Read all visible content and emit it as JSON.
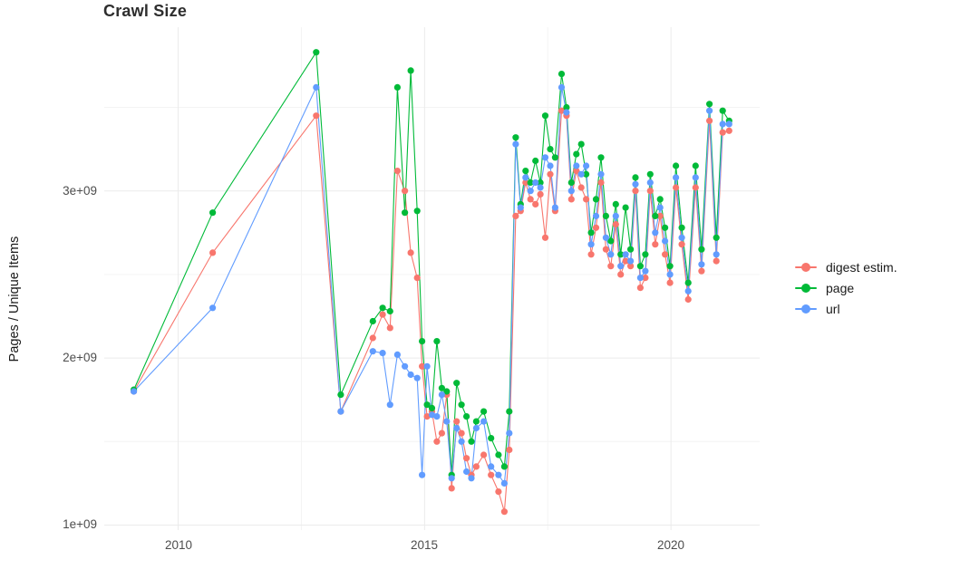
{
  "chart_data": {
    "type": "line",
    "title": "Crawl Size",
    "subtitle": "",
    "xlabel": "",
    "ylabel": "Pages / Unique Items",
    "x_unit": "year (decimal)",
    "y_scale": 1000000000,
    "y_scale_note": "series values are in units of 1e9 (billions); multiply by y_scale for absolute counts",
    "xlim": [
      2008.5,
      2021.8
    ],
    "ylim": [
      0.97,
      3.98
    ],
    "x_ticks_major": [
      2010,
      2015,
      2020
    ],
    "x_tick_labels": [
      "2010",
      "2015",
      "2020"
    ],
    "x_ticks_minor": [
      2012.5,
      2017.5
    ],
    "y_ticks_major": [
      1,
      2,
      3
    ],
    "y_tick_labels": [
      "1e+09",
      "2e+09",
      "3e+09"
    ],
    "y_ticks_minor": [
      1.5,
      2.5,
      3.5
    ],
    "grid": true,
    "legend_position": "right",
    "x": [
      2009.1,
      2010.7,
      2012.8,
      2013.3,
      2013.95,
      2014.15,
      2014.3,
      2014.45,
      2014.6,
      2014.72,
      2014.85,
      2014.95,
      2015.05,
      2015.15,
      2015.25,
      2015.35,
      2015.45,
      2015.55,
      2015.65,
      2015.75,
      2015.85,
      2015.95,
      2016.05,
      2016.2,
      2016.35,
      2016.5,
      2016.62,
      2016.72,
      2016.85,
      2016.95,
      2017.05,
      2017.15,
      2017.25,
      2017.35,
      2017.45,
      2017.55,
      2017.65,
      2017.78,
      2017.88,
      2017.98,
      2018.08,
      2018.18,
      2018.28,
      2018.38,
      2018.48,
      2018.58,
      2018.68,
      2018.78,
      2018.88,
      2018.98,
      2019.08,
      2019.18,
      2019.28,
      2019.38,
      2019.48,
      2019.58,
      2019.68,
      2019.78,
      2019.88,
      2019.98,
      2020.1,
      2020.22,
      2020.35,
      2020.5,
      2020.62,
      2020.78,
      2020.92,
      2021.05,
      2021.18
    ],
    "series": [
      {
        "key": "digest",
        "name": "digest estim.",
        "color": "#F8766D",
        "values": [
          1.8,
          2.63,
          3.45,
          1.68,
          2.12,
          2.26,
          2.18,
          3.12,
          3.0,
          2.63,
          2.48,
          1.95,
          1.65,
          1.68,
          1.5,
          1.55,
          1.78,
          1.22,
          1.62,
          1.55,
          1.4,
          1.3,
          1.35,
          1.42,
          1.3,
          1.2,
          1.08,
          1.45,
          2.85,
          2.88,
          3.05,
          2.95,
          2.92,
          2.98,
          2.72,
          3.1,
          2.88,
          3.48,
          3.45,
          2.95,
          3.12,
          3.02,
          2.95,
          2.62,
          2.78,
          3.05,
          2.65,
          2.55,
          2.8,
          2.5,
          2.58,
          2.55,
          3.0,
          2.42,
          2.48,
          3.0,
          2.68,
          2.85,
          2.62,
          2.45,
          3.02,
          2.68,
          2.35,
          3.02,
          2.52,
          3.42,
          2.58,
          3.35,
          3.36
        ]
      },
      {
        "key": "page",
        "name": "page",
        "color": "#00BA38",
        "values": [
          1.81,
          2.87,
          3.83,
          1.78,
          2.22,
          2.3,
          2.28,
          3.62,
          2.87,
          3.72,
          2.88,
          2.1,
          1.72,
          1.7,
          2.1,
          1.82,
          1.8,
          1.3,
          1.85,
          1.72,
          1.65,
          1.5,
          1.62,
          1.68,
          1.52,
          1.42,
          1.35,
          1.68,
          3.32,
          2.92,
          3.12,
          3.05,
          3.18,
          3.05,
          3.45,
          3.25,
          3.2,
          3.7,
          3.5,
          3.05,
          3.22,
          3.28,
          3.1,
          2.75,
          2.95,
          3.2,
          2.85,
          2.7,
          2.92,
          2.62,
          2.9,
          2.65,
          3.08,
          2.55,
          2.62,
          3.1,
          2.85,
          2.95,
          2.78,
          2.55,
          3.15,
          2.78,
          2.45,
          3.15,
          2.65,
          3.52,
          2.72,
          3.48,
          3.42
        ]
      },
      {
        "key": "url",
        "name": "url",
        "color": "#619CFF",
        "values": [
          1.8,
          2.3,
          3.62,
          1.68,
          2.04,
          2.03,
          1.72,
          2.02,
          1.95,
          1.9,
          1.88,
          1.3,
          1.95,
          1.66,
          1.65,
          1.78,
          1.62,
          1.28,
          1.58,
          1.5,
          1.32,
          1.28,
          1.58,
          1.62,
          1.35,
          1.3,
          1.25,
          1.55,
          3.28,
          2.9,
          3.08,
          3.0,
          3.05,
          3.02,
          3.2,
          3.15,
          2.9,
          3.62,
          3.47,
          3.0,
          3.15,
          3.1,
          3.15,
          2.68,
          2.85,
          3.1,
          2.72,
          2.62,
          2.85,
          2.55,
          2.62,
          2.58,
          3.04,
          2.48,
          2.52,
          3.05,
          2.75,
          2.9,
          2.7,
          2.5,
          3.08,
          2.72,
          2.4,
          3.08,
          2.56,
          3.48,
          2.62,
          3.4,
          3.4
        ]
      }
    ],
    "style": {
      "background": "#ffffff",
      "grid_major_color": "#ebebeb",
      "grid_minor_color": "#f4f4f4",
      "title_color": "#2e2e2e",
      "axis_text_color": "#4d4d4d",
      "axis_title_color": "#1a1a1a"
    }
  }
}
